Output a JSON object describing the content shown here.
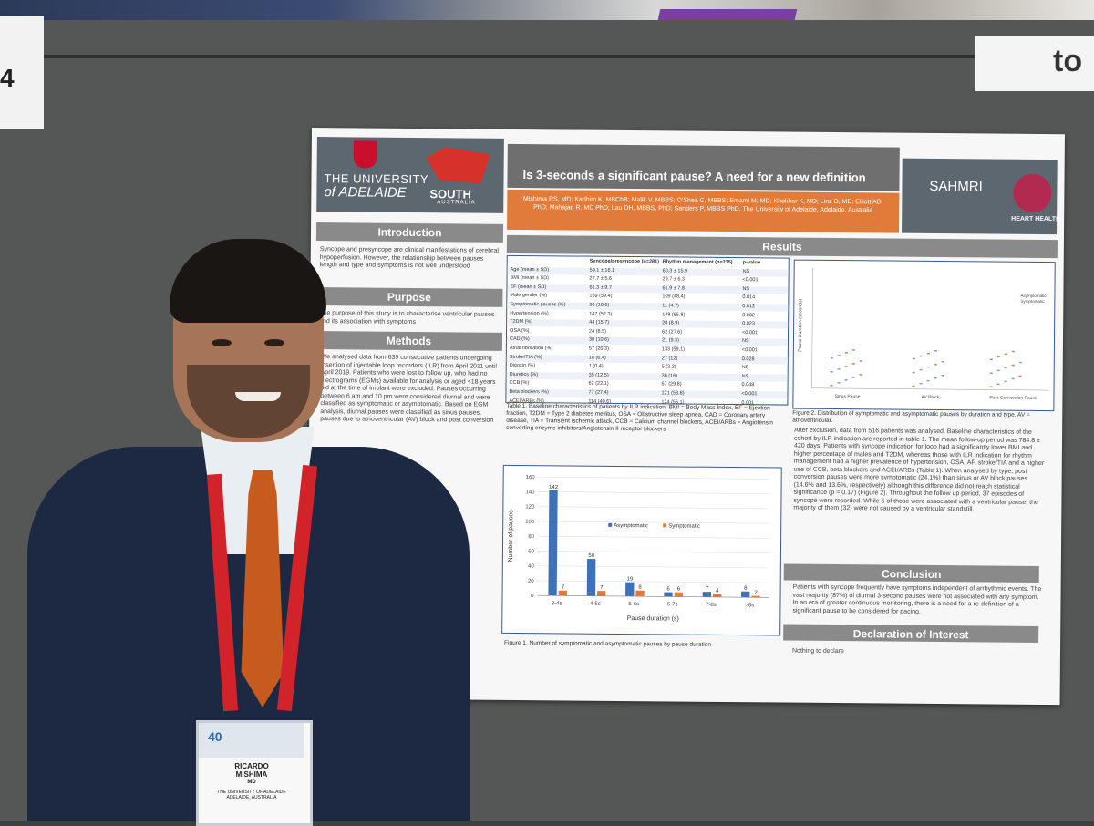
{
  "scene": {
    "left_tag_text": "4",
    "right_sign_text": "to"
  },
  "poster": {
    "university": "THE UNIVERSITY",
    "university_sub": "of ADELAIDE",
    "state": "SOUTH",
    "state_sub": "AUSTRALIA",
    "title": "Is 3-seconds a significant pause? A need for a new definition",
    "authors": "Mishima RS, MD; Kadhim K, MBChB; Malik V, MBBS; O'Shea C, MBBS; Emami M, MD; Khokhar K, MD; Linz D, MD; Elliott AD, PhD; Mahajan R, MD PhD; Lau DH, MBBS, PhD; Sanders P, MBBS PhD. The University of Adelaide, Adelaide, Australia",
    "sahmri": "SAHMRI",
    "heart_health": "HEART HEALTH",
    "sections": {
      "introduction": "Introduction",
      "purpose": "Purpose",
      "methods": "Methods",
      "results": "Results",
      "conclusion": "Conclusion",
      "declaration": "Declaration of Interest"
    },
    "intro_text": "Syncope and presyncope are clinical manifestations of cerebral hypoperfusion. However, the relationship between pauses length and type and symptoms is not well understood",
    "purpose_text": "The purpose of this study is to characterise ventricular pauses and its association with symptoms",
    "methods_text": "We analysed data from 639 consecutive patients undergoing insertion of injectable loop recorders (ILR) from April 2011 until April 2019. Patients who were lost to follow up, who had no electrograms (EGMs) available for analysis or aged <18 years old at the time of implant were excluded. Pauses occurring between 6 am and 10 pm were considered diurnal and were classified as symptomatic or asymptomatic. Based on EGM analysis, diurnal pauses were classified as sinus pauses, pauses due to atrioventricular (AV) block and post conversion",
    "table": {
      "headers": [
        "",
        "Syncope/presyncope (n=281)",
        "Rhythm management (n=235)",
        "p-value"
      ],
      "rows": [
        [
          "Age (mean ± SD)",
          "59.1 ± 16.1",
          "60.3 ± 15.9",
          "NS"
        ],
        [
          "BMI (mean ± SD)",
          "27.7 ± 5.6",
          "29.7 ± 6.3",
          "<0.001"
        ],
        [
          "EF (mean ± SD)",
          "61.3 ± 9.7",
          "61.9 ± 7.8",
          "NS"
        ],
        [
          "Male gender (%)",
          "169 (59.4)",
          "109 (48.4)",
          "0.014"
        ],
        [
          "Symptomatic pauses (%)",
          "30 (10.6)",
          "11 (4.7)",
          "0.012"
        ],
        [
          "Hypertension (%)",
          "147 (52.3)",
          "148 (65.8)",
          "0.002"
        ],
        [
          "T2DM (%)",
          "44 (15.7)",
          "20 (8.9)",
          "0.023"
        ],
        [
          "OSA (%)",
          "24 (8.5)",
          "62 (27.6)",
          "<0.001"
        ],
        [
          "CAD (%)",
          "30 (10.6)",
          "21 (9.3)",
          "NS"
        ],
        [
          "Atrial fibrillation (%)",
          "57 (20.3)",
          "133 (59.1)",
          "<0.001"
        ],
        [
          "Stroke/TIA (%)",
          "18 (6.4)",
          "27 (12)",
          "0.028"
        ],
        [
          "Digoxin (%)",
          "1 (0.4)",
          "5 (2.2)",
          "NS"
        ],
        [
          "Diuretics (%)",
          "35 (12.5)",
          "36 (16)",
          "NS"
        ],
        [
          "CCB (%)",
          "62 (22.1)",
          "67 (29.8)",
          "0.048"
        ],
        [
          "Beta blockers (%)",
          "77 (27.4)",
          "121 (53.8)",
          "<0.001"
        ],
        [
          "ACEI/ARBs (%)",
          "114 (40.6)",
          "124 (55.1)",
          "0.001"
        ]
      ]
    },
    "table_caption": "Table 1. Baseline characteristics of patients by ILR indication. BMI = Body Mass Index, EF = Ejection fraction, T2DM = Type 2 diabetes mellitus, OSA = Obstructive sleep apnea, CAD = Coronary artery disease, TIA = Transient ischemic attack, CCB = Calcium channel blockers, ACEI/ARBs = Angiotensin converting enzyme inhibitors/Angiotensin II receptor blockers",
    "fig2": {
      "ylabel": "Pause Duration (seconds)",
      "categories": [
        "Sinus Pause",
        "AV Block",
        "Post Conversion Pause"
      ],
      "legend": [
        "Asymptomatic",
        "Symptomatic"
      ],
      "caption": "Figure 2. Distribution of symptomatic and asymptomatic pauses by duration and type. AV = atrioventricular."
    },
    "results_text": "After exclusion, data from 516 patients was analysed. Baseline characteristics of the cohort by ILR indication are reported in table 1. The mean follow-up period was 784.8 ± 420 days. Patients with syncope indication for loop had a significantly lower BMI and higher percentage of males and T2DM, whereas those with ILR indication for rhythm management had a higher prevalence of hypertension, OSA, AF, stroke/TIA and a higher use of CCB, beta blockers and ACEI/ARBs (Table 1). When analysed by type, post conversion pauses were more symptomatic (24.1%) than sinus or AV block pauses (14.6% and 13.6%, respectively) although this difference did not reach statistical significance (p = 0.17) (Figure 2). Throughout the follow up period, 37 episodes of syncope were recorded. While 5 of those were associated with a ventricular pause, the majority of them (32) were not caused by a ventricular standstill.",
    "conclusion_text": "Patients with syncope frequently have symptoms independent of arrhythmic events. The vast majority (87%) of diurnal 3-second pauses were not associated with any symptom. In an era of greater continuous monitoring, there is a need for a re-definition of a significant pause to be considered for pacing.",
    "declaration_text": "Nothing to declare",
    "fig1_caption": "Figure 1. Number of symptomatic and asymptomatic pauses by pause duration"
  },
  "badge": {
    "logo": "40",
    "name_first": "RICARDO",
    "name_last": "MISHIMA",
    "title": "MD",
    "institution": "THE UNIVERSITY OF ADELAIDE",
    "location": "ADELAIDE, AUSTRALIA"
  },
  "chart_data": {
    "type": "bar",
    "categories": [
      "3-4s",
      "4-5s",
      "5-6s",
      "6-7s",
      "7-8s",
      ">8s"
    ],
    "series": [
      {
        "name": "Asymptomatic",
        "values": [
          142,
          50,
          19,
          6,
          7,
          8
        ],
        "color": "#3e72b8"
      },
      {
        "name": "Symptomatic",
        "values": [
          7,
          7,
          8,
          6,
          4,
          2
        ],
        "color": "#e07b39"
      }
    ],
    "xlabel": "Pause duration (s)",
    "ylabel": "Number of pauses",
    "ylim": [
      0,
      160
    ],
    "yticks": [
      0,
      20,
      40,
      60,
      80,
      100,
      120,
      140,
      160
    ],
    "legend_position": "top-center",
    "grid": true
  }
}
